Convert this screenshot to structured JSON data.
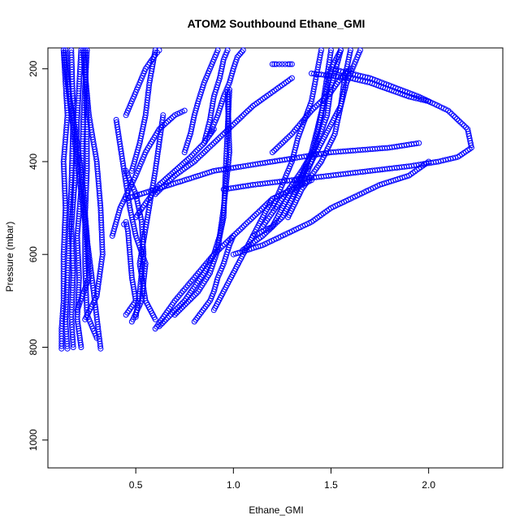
{
  "chart_data": {
    "type": "scatter",
    "title": "ATOM2 Southbound Ethane_GMI",
    "xlabel": "Ethane_GMI",
    "ylabel": "Pressure (mbar)",
    "xlim": [
      0.05,
      2.38
    ],
    "ylim": [
      1060,
      155
    ],
    "y_reversed": true,
    "x_ticks": [
      0.5,
      1.0,
      1.5,
      2.0
    ],
    "x_tick_labels": [
      "0.5",
      "1.0",
      "1.5",
      "2.0"
    ],
    "y_ticks": [
      200,
      400,
      600,
      800,
      1000
    ],
    "y_tick_labels": [
      "200",
      "400",
      "600",
      "800",
      "1000"
    ],
    "grid": false,
    "legend": "none",
    "marker": "open-circle",
    "color": "#0000ff",
    "series": [
      {
        "x": [
          0.12,
          0.12,
          0.13,
          0.13,
          0.14,
          0.13,
          0.15,
          0.13,
          0.32
        ],
        "y": [
          803,
          760,
          700,
          600,
          500,
          400,
          300,
          160,
          803
        ]
      },
      {
        "x": [
          0.15,
          0.14,
          0.15,
          0.16,
          0.17,
          0.18,
          0.17
        ],
        "y": [
          803,
          740,
          650,
          550,
          450,
          300,
          160
        ]
      },
      {
        "x": [
          0.18,
          0.17,
          0.18,
          0.17,
          0.19,
          0.2,
          0.22
        ],
        "y": [
          800,
          735,
          640,
          540,
          430,
          310,
          160
        ]
      },
      {
        "x": [
          0.22,
          0.2,
          0.21,
          0.2,
          0.22,
          0.23,
          0.25
        ],
        "y": [
          800,
          740,
          650,
          560,
          460,
          320,
          160
        ]
      },
      {
        "x": [
          0.3,
          0.25,
          0.24,
          0.24,
          0.25,
          0.25,
          0.24
        ],
        "y": [
          780,
          730,
          620,
          520,
          420,
          320,
          160
        ]
      },
      {
        "x": [
          0.24,
          0.3,
          0.33,
          0.32,
          0.3,
          0.26,
          0.23
        ],
        "y": [
          740,
          690,
          600,
          500,
          400,
          300,
          160
        ]
      },
      {
        "x": [
          0.2,
          0.26,
          0.25,
          0.23,
          0.2,
          0.16,
          0.14
        ],
        "y": [
          720,
          650,
          560,
          460,
          360,
          260,
          160
        ]
      },
      {
        "x": [
          0.45,
          0.5,
          0.48,
          0.47,
          0.46,
          0.45,
          0.44
        ],
        "y": [
          730,
          700,
          650,
          600,
          550,
          530,
          535
        ]
      },
      {
        "x": [
          0.48,
          0.53,
          0.55,
          0.5,
          0.47,
          0.44,
          0.4
        ],
        "y": [
          745,
          700,
          620,
          560,
          500,
          420,
          310
        ]
      },
      {
        "x": [
          0.5,
          0.52,
          0.54,
          0.53,
          0.5,
          0.45
        ],
        "y": [
          735,
          680,
          600,
          530,
          470,
          420
        ]
      },
      {
        "x": [
          0.6,
          0.55,
          0.52,
          0.56,
          0.6,
          0.64
        ],
        "y": [
          740,
          700,
          620,
          520,
          420,
          300
        ]
      },
      {
        "x": [
          0.62,
          0.75,
          0.85,
          0.9,
          0.93,
          0.95,
          0.96,
          0.98
        ],
        "y": [
          755,
          700,
          640,
          600,
          560,
          520,
          420,
          245
        ]
      },
      {
        "x": [
          0.7,
          0.82,
          0.88,
          0.92,
          0.95,
          0.98,
          0.97
        ],
        "y": [
          730,
          680,
          640,
          590,
          500,
          380,
          250
        ]
      },
      {
        "x": [
          0.8,
          0.88,
          0.9,
          0.92,
          0.95,
          0.98,
          1.0
        ],
        "y": [
          745,
          700,
          680,
          650,
          620,
          580,
          560
        ]
      },
      {
        "x": [
          0.9,
          0.95,
          1.0,
          1.05,
          1.1,
          1.15,
          1.2
        ],
        "y": [
          720,
          680,
          640,
          600,
          560,
          520,
          480
        ]
      },
      {
        "x": [
          0.6,
          0.7,
          0.8,
          0.9,
          1.0,
          1.1,
          1.2,
          1.3,
          1.4
        ],
        "y": [
          760,
          700,
          650,
          600,
          560,
          520,
          480,
          460,
          440
        ]
      },
      {
        "x": [
          1.0,
          1.15,
          1.3,
          1.4,
          1.5,
          1.6,
          1.75,
          1.9,
          2.0
        ],
        "y": [
          600,
          580,
          550,
          530,
          500,
          480,
          450,
          430,
          400
        ]
      },
      {
        "x": [
          0.95,
          1.1,
          1.3,
          1.5,
          1.7,
          1.9,
          2.05,
          2.15,
          2.22,
          2.2,
          2.1,
          1.95,
          1.7,
          1.5
        ],
        "y": [
          460,
          450,
          440,
          430,
          420,
          410,
          400,
          390,
          370,
          330,
          290,
          260,
          220,
          200
        ]
      },
      {
        "x": [
          1.05,
          1.15,
          1.25,
          1.3,
          1.35,
          1.38
        ],
        "y": [
          590,
          560,
          520,
          480,
          440,
          400
        ]
      },
      {
        "x": [
          1.1,
          1.2,
          1.25,
          1.3,
          1.4,
          1.45,
          1.5
        ],
        "y": [
          560,
          540,
          500,
          460,
          400,
          300,
          160
        ]
      },
      {
        "x": [
          1.15,
          1.25,
          1.35,
          1.42,
          1.48,
          1.5,
          1.55
        ],
        "y": [
          540,
          480,
          420,
          370,
          300,
          240,
          160
        ]
      },
      {
        "x": [
          1.2,
          1.25,
          1.3,
          1.33,
          1.4,
          1.45
        ],
        "y": [
          500,
          450,
          400,
          350,
          270,
          160
        ]
      },
      {
        "x": [
          1.3,
          1.35,
          1.4,
          1.43,
          1.47,
          1.5,
          1.55
        ],
        "y": [
          480,
          430,
          380,
          330,
          260,
          200,
          160
        ]
      },
      {
        "x": [
          1.28,
          1.35,
          1.45,
          1.52,
          1.55,
          1.57,
          1.6
        ],
        "y": [
          520,
          460,
          400,
          340,
          280,
          220,
          160
        ]
      },
      {
        "x": [
          1.35,
          1.4,
          1.45,
          1.5,
          1.55,
          1.58,
          1.62,
          1.65
        ],
        "y": [
          450,
          400,
          360,
          320,
          280,
          230,
          190,
          160
        ]
      },
      {
        "x": [
          1.2,
          1.22,
          1.25,
          1.28,
          1.3
        ],
        "y": [
          190,
          190,
          190,
          190,
          190
        ]
      },
      {
        "x": [
          0.45,
          0.6,
          0.75,
          0.9,
          1.05,
          1.2,
          1.35,
          1.5,
          1.65,
          1.8,
          1.95
        ],
        "y": [
          480,
          460,
          440,
          420,
          410,
          400,
          390,
          380,
          375,
          370,
          360
        ]
      },
      {
        "x": [
          0.5,
          0.55,
          0.62,
          0.7,
          0.78,
          0.85,
          0.9
        ],
        "y": [
          520,
          490,
          450,
          420,
          390,
          360,
          330
        ]
      },
      {
        "x": [
          0.38,
          0.42,
          0.5,
          0.55,
          0.62,
          0.7,
          0.75
        ],
        "y": [
          560,
          500,
          430,
          380,
          330,
          300,
          290
        ]
      },
      {
        "x": [
          0.6,
          0.7,
          0.8,
          0.9,
          1.0,
          1.1,
          1.2,
          1.3
        ],
        "y": [
          470,
          430,
          400,
          360,
          320,
          280,
          250,
          220
        ]
      },
      {
        "x": [
          0.45,
          0.5,
          0.55,
          0.6,
          0.62
        ],
        "y": [
          300,
          250,
          200,
          170,
          160
        ]
      },
      {
        "x": [
          0.48,
          0.52,
          0.55,
          0.57,
          0.6
        ],
        "y": [
          420,
          360,
          300,
          230,
          160
        ]
      },
      {
        "x": [
          0.75,
          0.78,
          0.8,
          0.82,
          0.85,
          0.9,
          0.92
        ],
        "y": [
          380,
          340,
          300,
          270,
          230,
          180,
          160
        ]
      },
      {
        "x": [
          0.85,
          0.88,
          0.9,
          0.93,
          0.95,
          0.97
        ],
        "y": [
          360,
          310,
          260,
          220,
          180,
          160
        ]
      },
      {
        "x": [
          0.88,
          0.92,
          0.95,
          0.98,
          1.0,
          1.02,
          1.05
        ],
        "y": [
          340,
          300,
          260,
          230,
          200,
          175,
          160
        ]
      },
      {
        "x": [
          1.4,
          1.5,
          1.6,
          1.7,
          1.8,
          1.9,
          2.0
        ],
        "y": [
          210,
          215,
          220,
          230,
          245,
          260,
          270
        ]
      },
      {
        "x": [
          1.2,
          1.3,
          1.4,
          1.5,
          1.55,
          1.6
        ],
        "y": [
          380,
          340,
          290,
          250,
          220,
          200
        ]
      }
    ]
  }
}
